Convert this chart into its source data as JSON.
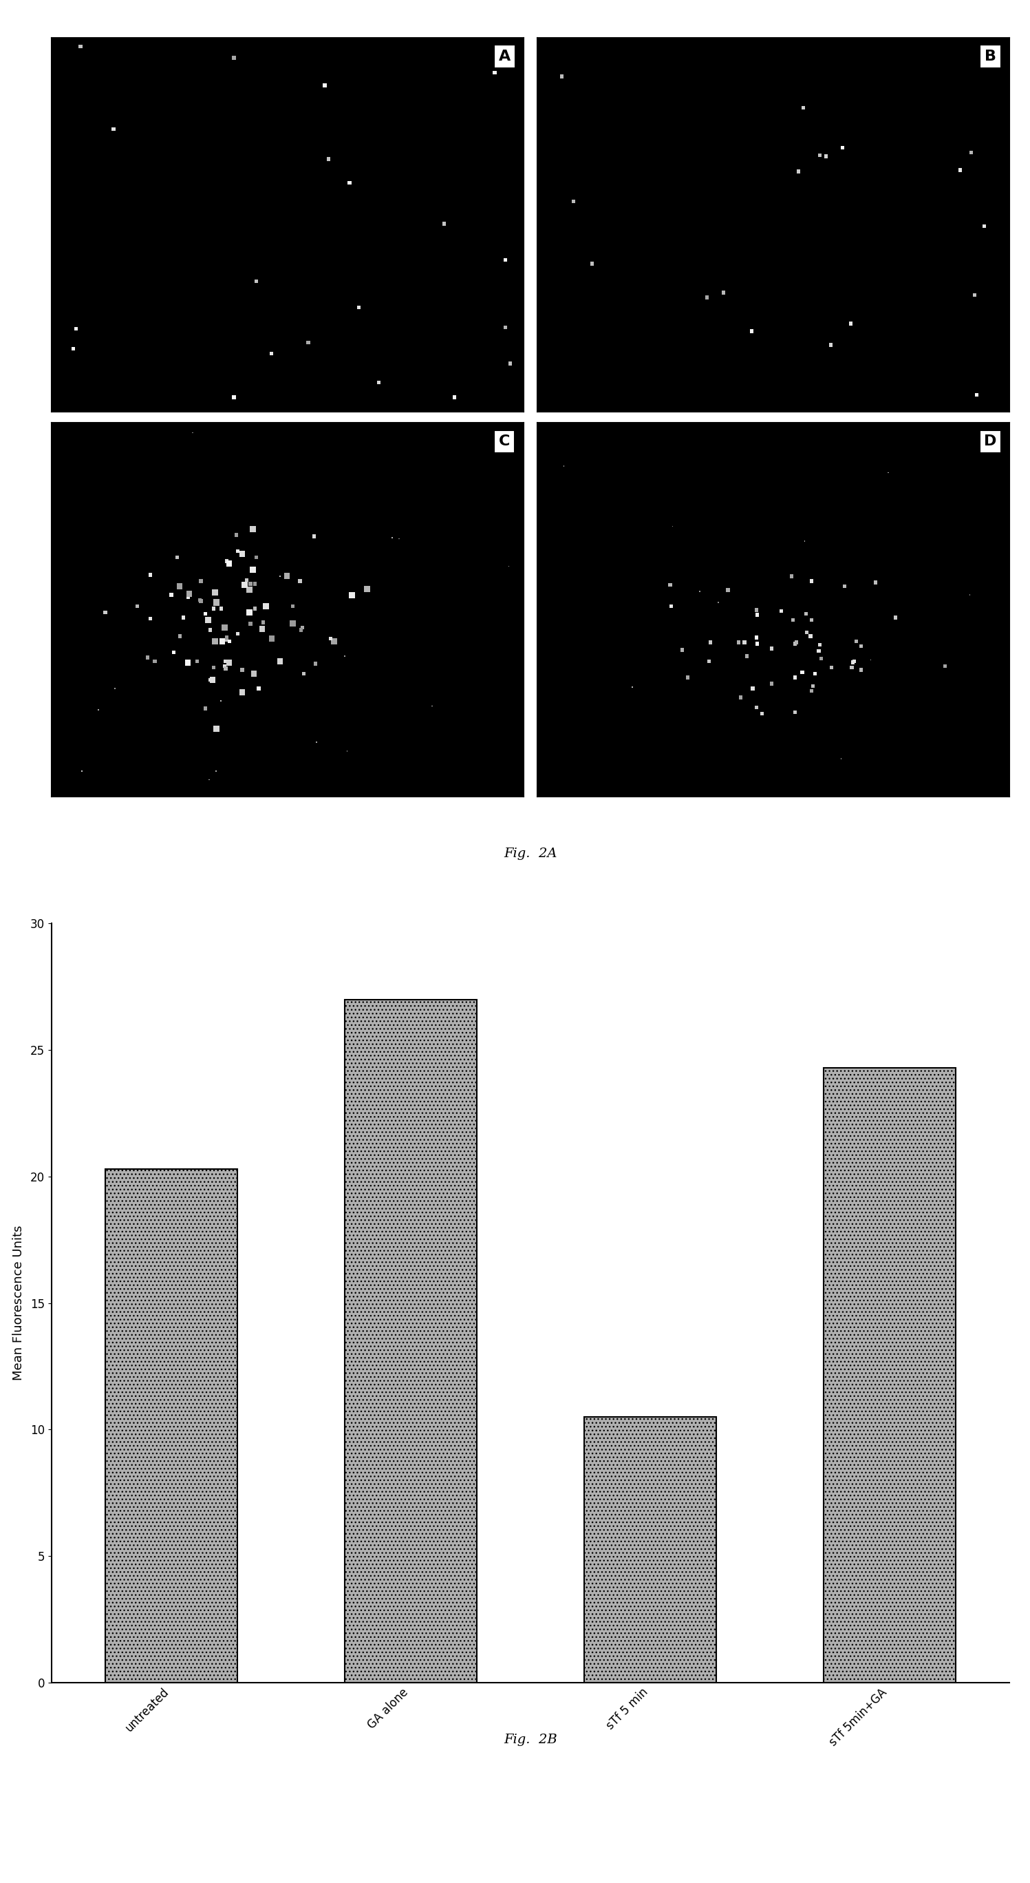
{
  "fig2a_caption": "Fig.  2A",
  "fig2b_caption": "Fig.  2B",
  "panel_labels": [
    "A",
    "B",
    "C",
    "D"
  ],
  "bar_categories": [
    "untreated",
    "GA alone",
    "sTf 5 min",
    "sTf 5min+GA"
  ],
  "bar_values": [
    20.3,
    27.0,
    10.5,
    24.3
  ],
  "bar_color": "#b0b0b0",
  "bar_hatch": "...",
  "ylabel": "Mean Fluorescence Units",
  "ylim": [
    0,
    30
  ],
  "yticks": [
    0,
    5,
    10,
    15,
    20,
    25,
    30
  ],
  "background_color": "#ffffff",
  "image_bg": "#000000",
  "panel_label_fontsize": 16,
  "axis_fontsize": 13,
  "caption_fontsize": 14
}
